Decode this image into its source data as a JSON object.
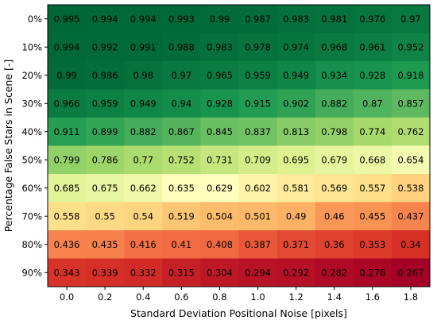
{
  "chart_data": {
    "type": "heatmap",
    "title": "",
    "xlabel": "Standard Deviation Positional Noise [pixels]",
    "ylabel": "Percentage False Stars in Scene [-]",
    "x_categories": [
      "0.0",
      "0.2",
      "0.4",
      "0.6",
      "0.8",
      "1.0",
      "1.2",
      "1.4",
      "1.6",
      "1.8"
    ],
    "y_categories": [
      "0%",
      "10%",
      "20%",
      "30%",
      "40%",
      "50%",
      "60%",
      "70%",
      "80%",
      "90%"
    ],
    "colormap": "RdYlGn",
    "value_range": [
      0.267,
      0.995
    ],
    "grid": false,
    "colorbar": false,
    "values": [
      [
        0.995,
        0.994,
        0.994,
        0.993,
        0.99,
        0.987,
        0.983,
        0.981,
        0.976,
        0.97
      ],
      [
        0.994,
        0.992,
        0.991,
        0.988,
        0.983,
        0.978,
        0.974,
        0.968,
        0.961,
        0.952
      ],
      [
        0.99,
        0.986,
        0.98,
        0.97,
        0.965,
        0.959,
        0.949,
        0.934,
        0.928,
        0.918
      ],
      [
        0.966,
        0.959,
        0.949,
        0.94,
        0.928,
        0.915,
        0.902,
        0.882,
        0.87,
        0.857
      ],
      [
        0.911,
        0.899,
        0.882,
        0.867,
        0.845,
        0.837,
        0.813,
        0.798,
        0.774,
        0.762
      ],
      [
        0.799,
        0.786,
        0.77,
        0.752,
        0.731,
        0.709,
        0.695,
        0.679,
        0.668,
        0.654
      ],
      [
        0.685,
        0.675,
        0.662,
        0.635,
        0.629,
        0.602,
        0.581,
        0.569,
        0.557,
        0.538
      ],
      [
        0.558,
        0.55,
        0.54,
        0.519,
        0.504,
        0.501,
        0.49,
        0.46,
        0.455,
        0.437
      ],
      [
        0.436,
        0.435,
        0.416,
        0.41,
        0.408,
        0.387,
        0.371,
        0.36,
        0.353,
        0.34
      ],
      [
        0.343,
        0.339,
        0.332,
        0.315,
        0.304,
        0.294,
        0.292,
        0.282,
        0.276,
        0.267
      ]
    ],
    "cell_labels": [
      [
        "0.995",
        "0.994",
        "0.994",
        "0.993",
        "0.99",
        "0.987",
        "0.983",
        "0.981",
        "0.976",
        "0.97"
      ],
      [
        "0.994",
        "0.992",
        "0.991",
        "0.988",
        "0.983",
        "0.978",
        "0.974",
        "0.968",
        "0.961",
        "0.952"
      ],
      [
        "0.99",
        "0.986",
        "0.98",
        "0.97",
        "0.965",
        "0.959",
        "0.949",
        "0.934",
        "0.928",
        "0.918"
      ],
      [
        "0.966",
        "0.959",
        "0.949",
        "0.94",
        "0.928",
        "0.915",
        "0.902",
        "0.882",
        "0.87",
        "0.857"
      ],
      [
        "0.911",
        "0.899",
        "0.882",
        "0.867",
        "0.845",
        "0.837",
        "0.813",
        "0.798",
        "0.774",
        "0.762"
      ],
      [
        "0.799",
        "0.786",
        "0.77",
        "0.752",
        "0.731",
        "0.709",
        "0.695",
        "0.679",
        "0.668",
        "0.654"
      ],
      [
        "0.685",
        "0.675",
        "0.662",
        "0.635",
        "0.629",
        "0.602",
        "0.581",
        "0.569",
        "0.557",
        "0.538"
      ],
      [
        "0.558",
        "0.55",
        "0.54",
        "0.519",
        "0.504",
        "0.501",
        "0.49",
        "0.46",
        "0.455",
        "0.437"
      ],
      [
        "0.436",
        "0.435",
        "0.416",
        "0.41",
        "0.408",
        "0.387",
        "0.371",
        "0.36",
        "0.353",
        "0.34"
      ],
      [
        "0.343",
        "0.339",
        "0.332",
        "0.315",
        "0.304",
        "0.294",
        "0.292",
        "0.282",
        "0.276",
        "0.267"
      ]
    ]
  }
}
